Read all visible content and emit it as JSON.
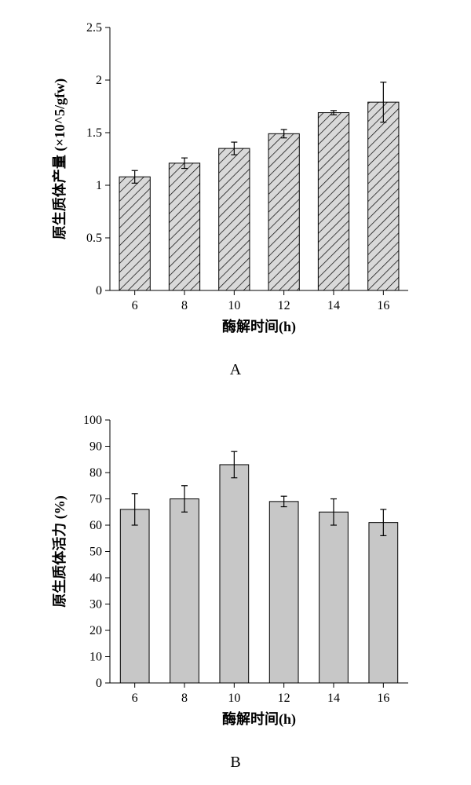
{
  "chartA": {
    "type": "bar",
    "label": "A",
    "categories": [
      "6",
      "8",
      "10",
      "12",
      "14",
      "16"
    ],
    "values": [
      1.08,
      1.21,
      1.35,
      1.49,
      1.69,
      1.79
    ],
    "err": [
      0.06,
      0.05,
      0.06,
      0.04,
      0.02,
      0.19
    ],
    "bar_fill": "#d9d9d9",
    "bar_pattern": "diagonal",
    "bar_stroke": "#000000",
    "pattern_stroke": "#000000",
    "background_color": "#ffffff",
    "ylabel": "原生质体产量 (×10^5/gfw)",
    "xlabel": "酶解时间(h)",
    "ylim": [
      0,
      2.5
    ],
    "ytick_step": 0.5,
    "yticks": [
      "0",
      "0.5",
      "1",
      "1.5",
      "2",
      "2.5"
    ],
    "bar_width": 0.62,
    "tick_fontsize": 16,
    "axis_title_fontsize": 18,
    "error_cap_width": 8
  },
  "chartB": {
    "type": "bar",
    "label": "B",
    "categories": [
      "6",
      "8",
      "10",
      "12",
      "14",
      "16"
    ],
    "values": [
      66,
      70,
      83,
      69,
      65,
      61
    ],
    "err": [
      6,
      5,
      5,
      2,
      5,
      5
    ],
    "bar_fill": "#c7c7c7",
    "bar_stroke": "#000000",
    "background_color": "#ffffff",
    "ylabel": "原生质体活力 (%)",
    "xlabel": "酶解时间(h)",
    "ylim": [
      0,
      100
    ],
    "ytick_step": 10,
    "yticks": [
      "0",
      "10",
      "20",
      "30",
      "40",
      "50",
      "60",
      "70",
      "80",
      "90",
      "100"
    ],
    "bar_width": 0.58,
    "tick_fontsize": 16,
    "axis_title_fontsize": 18,
    "error_cap_width": 8
  }
}
